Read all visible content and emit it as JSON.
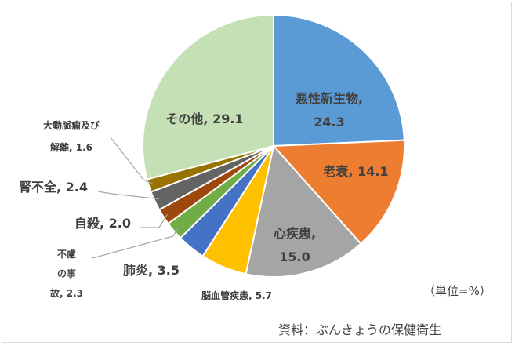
{
  "chart_data": {
    "type": "pie",
    "title": "",
    "unit_note": "（単位=%）",
    "source": "資料：ぶんきょうの保健衛生",
    "slices": [
      {
        "label": "悪性新生物",
        "value": 24.3,
        "color": "#5b9bd5"
      },
      {
        "label": "老衰",
        "value": 14.1,
        "color": "#ed7d31"
      },
      {
        "label": "心疾患",
        "value": 15.0,
        "color": "#a5a5a5"
      },
      {
        "label": "脳血管疾患",
        "value": 5.7,
        "color": "#ffc000"
      },
      {
        "label": "肺炎",
        "value": 3.5,
        "color": "#4472c4"
      },
      {
        "label": "不慮の事故",
        "value": 2.3,
        "color": "#70ad47"
      },
      {
        "label": "自殺",
        "value": 2.0,
        "color": "#9e480e"
      },
      {
        "label": "腎不全",
        "value": 2.4,
        "color": "#636363"
      },
      {
        "label": "大動脈瘤及び解離",
        "value": 1.6,
        "color": "#997300"
      },
      {
        "label": "その他",
        "value": 29.1,
        "color": "#c5e0b4"
      }
    ],
    "data_labels": [
      {
        "lines": [
          "悪性新生物,",
          "24.3"
        ]
      },
      {
        "lines": [
          "老衰, 14.1"
        ]
      },
      {
        "lines": [
          "心疾患,",
          "15.0"
        ]
      },
      {
        "lines": [
          "脳血管疾患, 5.7"
        ]
      },
      {
        "lines": [
          "肺炎, 3.5"
        ]
      },
      {
        "lines": [
          "不慮",
          "の事",
          "故, 2.3"
        ]
      },
      {
        "lines": [
          "自殺, 2.0"
        ]
      },
      {
        "lines": [
          "腎不全, 2.4"
        ]
      },
      {
        "lines": [
          "大動脈瘤及び",
          "解離, 1.6"
        ]
      },
      {
        "lines": [
          "その他, 29.1"
        ]
      }
    ]
  }
}
